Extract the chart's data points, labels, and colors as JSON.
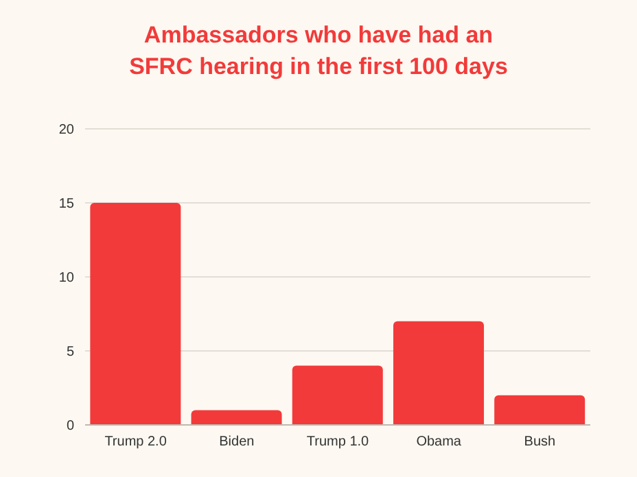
{
  "chart_data": {
    "type": "bar",
    "title": "Ambassadors who have had an\nSFRC hearing in the first 100 days",
    "categories": [
      "Trump 2.0",
      "Biden",
      "Trump 1.0",
      "Obama",
      "Bush"
    ],
    "values": [
      15,
      1,
      4,
      7,
      2
    ],
    "color": "#f23a3a",
    "ylim": [
      0,
      20
    ],
    "yticks": [
      0,
      5,
      10,
      15,
      20
    ],
    "grid": "y"
  }
}
